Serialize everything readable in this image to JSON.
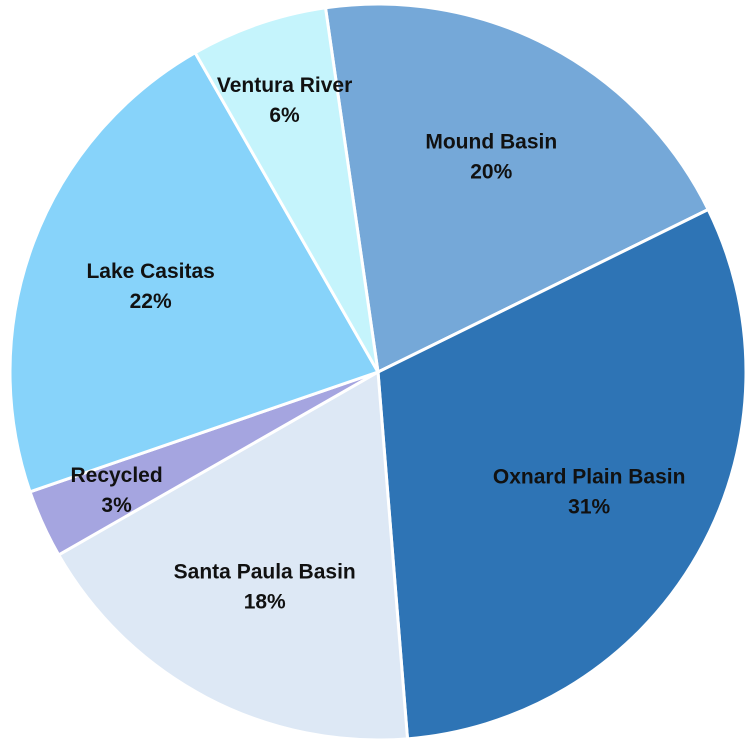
{
  "chart_data": {
    "type": "pie",
    "categories": [
      "Mound Basin",
      "Oxnard Plain Basin",
      "Santa Paula Basin",
      "Recycled",
      "Lake Casitas",
      "Ventura River"
    ],
    "values": [
      20,
      31,
      18,
      3,
      22,
      6
    ],
    "value_labels": [
      "20%",
      "31%",
      "18%",
      "3%",
      "22%",
      "6%"
    ],
    "colors": [
      "#75a8d8",
      "#2e74b5",
      "#dde8f5",
      "#a5a5e0",
      "#87d3fa",
      "#c5f4fc"
    ]
  }
}
